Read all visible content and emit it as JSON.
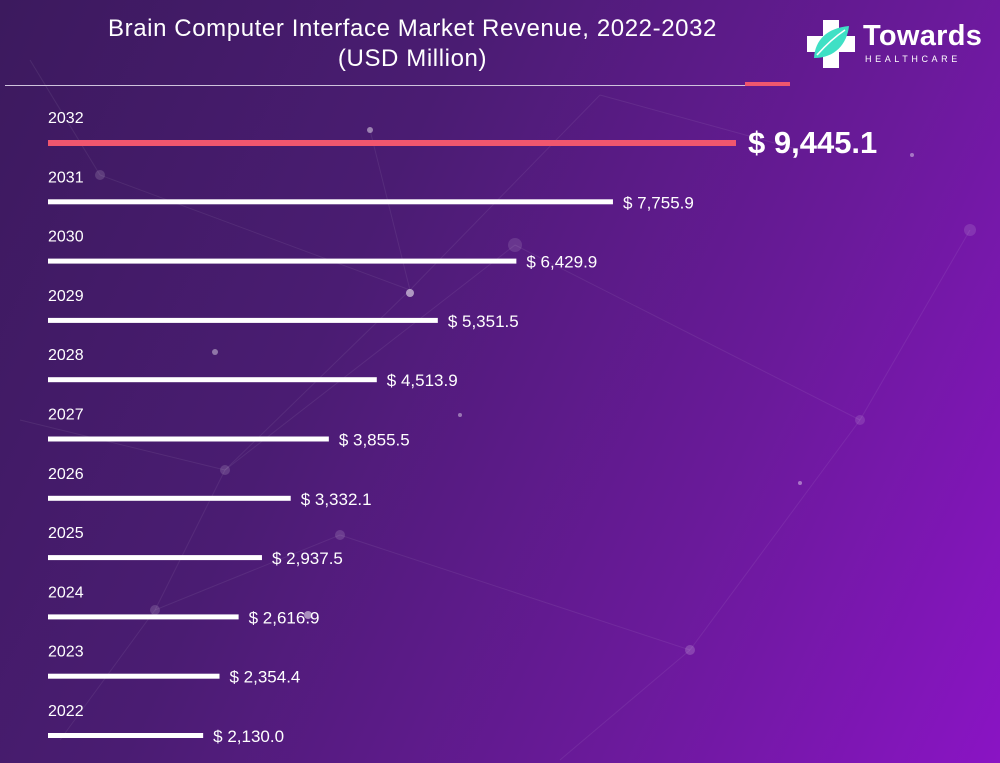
{
  "header": {
    "title_line1": "Brain Computer Interface Market Revenue, 2022-2032",
    "title_line2": "(USD Million)"
  },
  "logo": {
    "name": "Towards",
    "tagline": "HEALTHCARE"
  },
  "colors": {
    "background_start": "#3c1a5e",
    "background_end": "#8a14c4",
    "highlight": "#f0566e",
    "bar": "#ffffff",
    "logo_accent": "#3fe0c5"
  },
  "chart_data": {
    "type": "bar",
    "orientation": "horizontal",
    "title": "Brain Computer Interface Market Revenue, 2022-2032 (USD Million)",
    "categories": [
      "2032",
      "2031",
      "2030",
      "2029",
      "2028",
      "2027",
      "2026",
      "2025",
      "2024",
      "2023",
      "2022"
    ],
    "values": [
      9445.1,
      7755.9,
      6429.9,
      5351.5,
      4513.9,
      3855.5,
      3332.1,
      2937.5,
      2616.9,
      2354.4,
      2130.0
    ],
    "value_labels": [
      "$ 9,445.1",
      "$ 7,755.9",
      "$ 6,429.9",
      "$ 5,351.5",
      "$ 4,513.9",
      "$ 3,855.5",
      "$ 3,332.1",
      "$ 2,937.5",
      "$ 2,616.9",
      "$ 2,354.4",
      "$ 2,130.0"
    ],
    "highlighted_category": "2032",
    "xlabel": "",
    "ylabel": "",
    "grid": false,
    "legend": "none"
  }
}
